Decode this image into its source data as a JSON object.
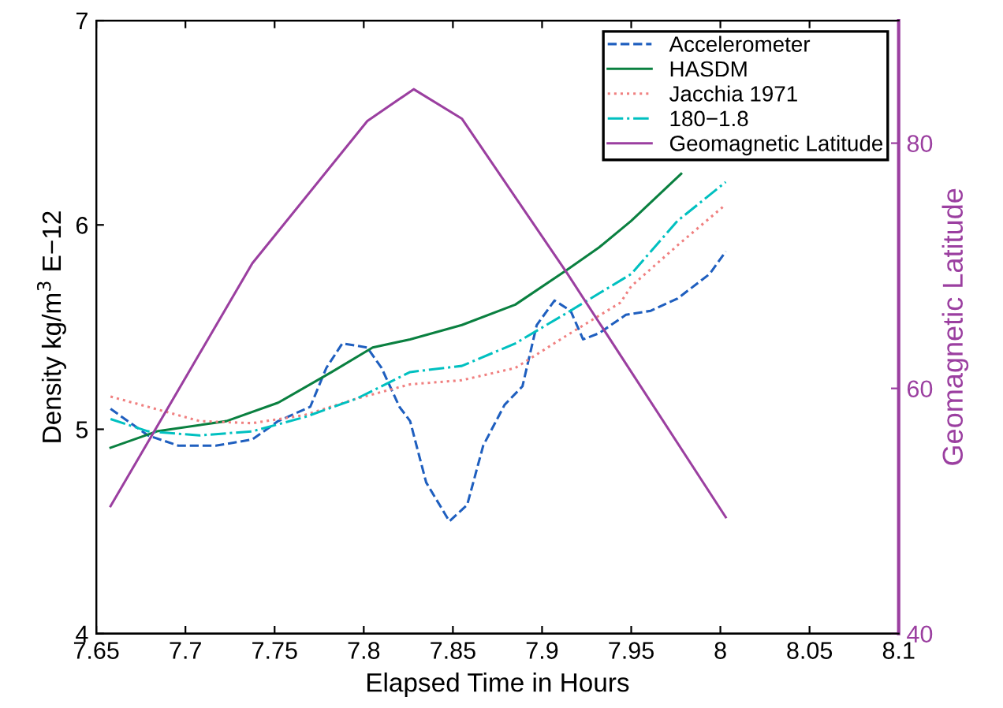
{
  "chart_data": {
    "type": "line",
    "xlabel": "Elapsed Time in Hours",
    "ylabel": "Density kg/m$^{3}$ E−12",
    "y2label": "Geomagnetic Latitude",
    "xlim": [
      7.65,
      8.1
    ],
    "xticks": [
      7.65,
      7.7,
      7.75,
      7.8,
      7.85,
      7.9,
      7.95,
      8,
      8.05,
      8.1
    ],
    "ylim": [
      4,
      7
    ],
    "yticks": [
      4,
      5,
      6,
      7
    ],
    "y2lim": [
      40,
      90
    ],
    "y2ticks": [
      40,
      60,
      80
    ],
    "grid": false,
    "legend": "top right",
    "series": [
      {
        "name": "Accelerometer",
        "color": "#1f5fbf",
        "line_style": "dashed",
        "x": [
          7.658,
          7.679,
          7.696,
          7.717,
          7.7375,
          7.752,
          7.77,
          7.779,
          7.788,
          7.802,
          7.81,
          7.82,
          7.826,
          7.835,
          7.848,
          7.858,
          7.867,
          7.879,
          7.889,
          7.897,
          7.907,
          7.916,
          7.923,
          7.932,
          7.947,
          7.961,
          7.976,
          7.994,
          8.003
        ],
        "values": [
          5.1,
          4.97,
          4.92,
          4.92,
          4.95,
          5.04,
          5.11,
          5.3,
          5.42,
          5.4,
          5.3,
          5.11,
          5.04,
          4.74,
          4.55,
          4.63,
          4.92,
          5.12,
          5.21,
          5.51,
          5.63,
          5.58,
          5.44,
          5.47,
          5.56,
          5.58,
          5.64,
          5.76,
          5.87
        ]
      },
      {
        "name": "HASDM",
        "color": "#0a8040",
        "line_style": "solid",
        "x": [
          7.658,
          7.684,
          7.723,
          7.752,
          7.782,
          7.805,
          7.826,
          7.855,
          7.885,
          7.914,
          7.932,
          7.95,
          7.978
        ],
        "values": [
          4.91,
          4.99,
          5.04,
          5.13,
          5.28,
          5.4,
          5.44,
          5.51,
          5.61,
          5.78,
          5.89,
          6.02,
          6.25
        ]
      },
      {
        "name": "Jacchia 1971",
        "color": "#f08080",
        "line_style": "dotted",
        "x": [
          7.658,
          7.679,
          7.708,
          7.7375,
          7.767,
          7.796,
          7.826,
          7.855,
          7.885,
          7.914,
          7.944,
          7.95,
          7.976,
          8.003
        ],
        "values": [
          5.16,
          5.11,
          5.04,
          5.03,
          5.07,
          5.15,
          5.22,
          5.24,
          5.3,
          5.46,
          5.62,
          5.7,
          5.9,
          6.1
        ]
      },
      {
        "name": "180−1.8",
        "color": "#00c0c0",
        "line_style": "dashdot",
        "x": [
          7.658,
          7.679,
          7.708,
          7.7375,
          7.767,
          7.796,
          7.826,
          7.855,
          7.885,
          7.914,
          7.95,
          7.976,
          8.003
        ],
        "values": [
          5.05,
          4.99,
          4.97,
          4.99,
          5.06,
          5.15,
          5.28,
          5.31,
          5.42,
          5.57,
          5.76,
          6.02,
          6.21
        ]
      },
      {
        "name": "Geomagnetic Latitude",
        "color": "#9b3fa0",
        "line_style": "solid",
        "axis": "y2",
        "x": [
          7.658,
          7.7375,
          7.802,
          7.828,
          7.855,
          7.914,
          8.003
        ],
        "values": [
          50.4,
          70.2,
          81.8,
          84.4,
          82.0,
          69.4,
          49.5
        ]
      }
    ]
  }
}
